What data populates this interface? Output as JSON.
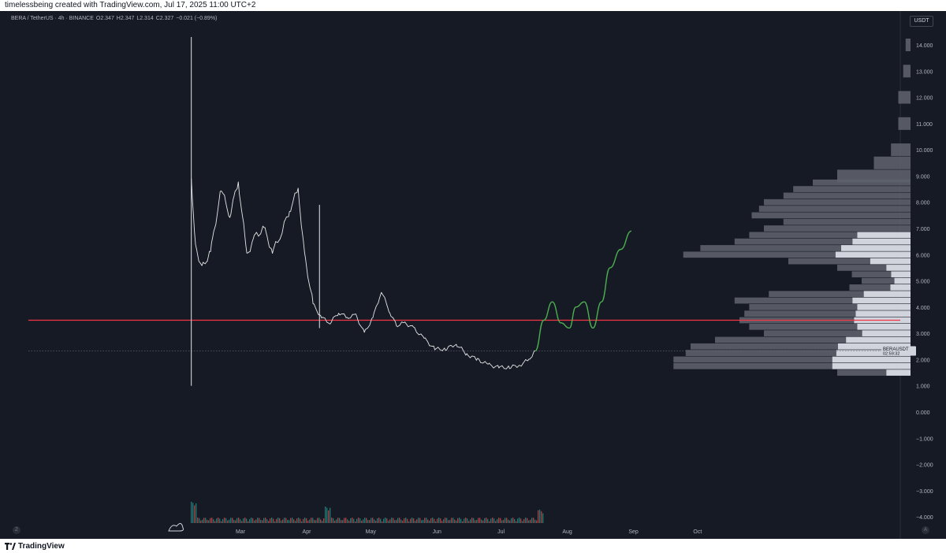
{
  "header": {
    "caption": "timelessbeing created with TradingView.com, Jul 17, 2025 11:00 UTC+2"
  },
  "legend": {
    "symbol": "BERA / TetherUS · 4h · BINANCE",
    "open": "O2.347",
    "high": "H2.347",
    "low": "L2.314",
    "close": "C2.327",
    "change": "−0.021 (−0.89%)"
  },
  "currency_badge": "USDT",
  "price_tag": {
    "symbol": "BERAUSDT",
    "countdown": "02:59:32"
  },
  "footer": {
    "brand": "TradingView",
    "left_button": "Z",
    "right_button": "A"
  },
  "colors": {
    "background": "#161a25",
    "candles": "#e6e6e6",
    "level_line": "#f23645",
    "projection": "#4caf50",
    "profile_light": "#d1d4dc",
    "profile_dark": "#5d606b",
    "volume_up": "#26a69a",
    "volume_down": "#ef5350"
  },
  "chart_data": {
    "type": "line",
    "symbol": "BERAUSDT",
    "timeframe": "4h",
    "x_tick_labels": [
      "Mar",
      "Apr",
      "May",
      "Jun",
      "Jul",
      "Aug",
      "Sep",
      "Oct"
    ],
    "y_tick_labels": [
      "14.000",
      "13.000",
      "12.000",
      "11.000",
      "10.000",
      "9.000",
      "8.000",
      "7.000",
      "6.000",
      "5.000",
      "4.000",
      "3.000",
      "2.000",
      "1.000",
      "0.000",
      "−1.000",
      "−2.000",
      "−3.000",
      "−4.000"
    ],
    "ylim": [
      -4.2,
      14.8
    ],
    "series": [
      {
        "name": "price",
        "x": [
          "2025-02-06",
          "2025-02-08",
          "2025-02-11",
          "2025-02-15",
          "2025-02-20",
          "2025-02-24",
          "2025-02-28",
          "2025-03-04",
          "2025-03-08",
          "2025-03-12",
          "2025-03-16",
          "2025-03-20",
          "2025-03-24",
          "2025-03-28",
          "2025-03-31",
          "2025-04-04",
          "2025-04-08",
          "2025-04-12",
          "2025-04-16",
          "2025-04-20",
          "2025-04-24",
          "2025-04-28",
          "2025-05-02",
          "2025-05-06",
          "2025-05-10",
          "2025-05-13",
          "2025-05-17",
          "2025-05-21",
          "2025-05-26",
          "2025-05-31",
          "2025-06-05",
          "2025-06-10",
          "2025-06-15",
          "2025-06-20",
          "2025-06-25",
          "2025-06-30",
          "2025-07-05",
          "2025-07-10",
          "2025-07-14",
          "2025-07-17"
        ],
        "y": [
          8.9,
          6.3,
          5.5,
          6.1,
          8.5,
          7.5,
          8.8,
          6.0,
          6.7,
          7.0,
          6.1,
          6.8,
          7.7,
          8.5,
          6.0,
          4.1,
          3.6,
          3.4,
          3.8,
          3.6,
          3.7,
          3.0,
          3.6,
          4.6,
          3.8,
          3.3,
          3.4,
          3.2,
          2.8,
          2.4,
          2.4,
          2.6,
          2.2,
          2.0,
          1.8,
          1.7,
          1.7,
          1.8,
          2.0,
          2.33
        ]
      },
      {
        "name": "projection",
        "x": [
          "2025-07-17",
          "2025-07-21",
          "2025-07-25",
          "2025-07-29",
          "2025-08-02",
          "2025-08-05",
          "2025-08-09",
          "2025-08-13",
          "2025-08-17",
          "2025-08-21",
          "2025-08-26",
          "2025-08-31"
        ],
        "y": [
          2.33,
          3.5,
          4.2,
          3.4,
          3.2,
          4.0,
          4.2,
          3.2,
          4.2,
          5.5,
          6.2,
          6.9
        ]
      }
    ],
    "spike_highs": [
      {
        "x": "2025-02-06",
        "high": 14.3,
        "low": 1.0
      },
      {
        "x": "2025-04-07",
        "high": 7.9,
        "low": 3.2
      }
    ],
    "horizontal_levels": [
      3.5
    ],
    "current_price": 2.327,
    "volume_profile": {
      "price_levels": [
        1.5,
        1.75,
        2.0,
        2.25,
        2.5,
        2.75,
        3.0,
        3.25,
        3.5,
        3.75,
        4.0,
        4.25,
        4.5,
        4.75,
        5.0,
        5.25,
        5.5,
        5.75,
        6.0,
        6.25,
        6.5,
        6.75,
        7.0,
        7.25,
        7.5,
        7.75,
        8.0,
        8.25,
        8.5,
        8.75,
        9.0,
        9.5,
        10.0,
        11.0,
        12.0,
        13.0,
        14.0
      ],
      "relative_volume": [
        0.3,
        0.97,
        0.97,
        0.92,
        0.9,
        0.8,
        0.6,
        0.66,
        0.7,
        0.68,
        0.66,
        0.72,
        0.58,
        0.25,
        0.2,
        0.24,
        0.3,
        0.5,
        0.93,
        0.86,
        0.72,
        0.66,
        0.6,
        0.52,
        0.65,
        0.62,
        0.6,
        0.52,
        0.48,
        0.4,
        0.3,
        0.15,
        0.08,
        0.05,
        0.05,
        0.03,
        0.02
      ]
    }
  }
}
